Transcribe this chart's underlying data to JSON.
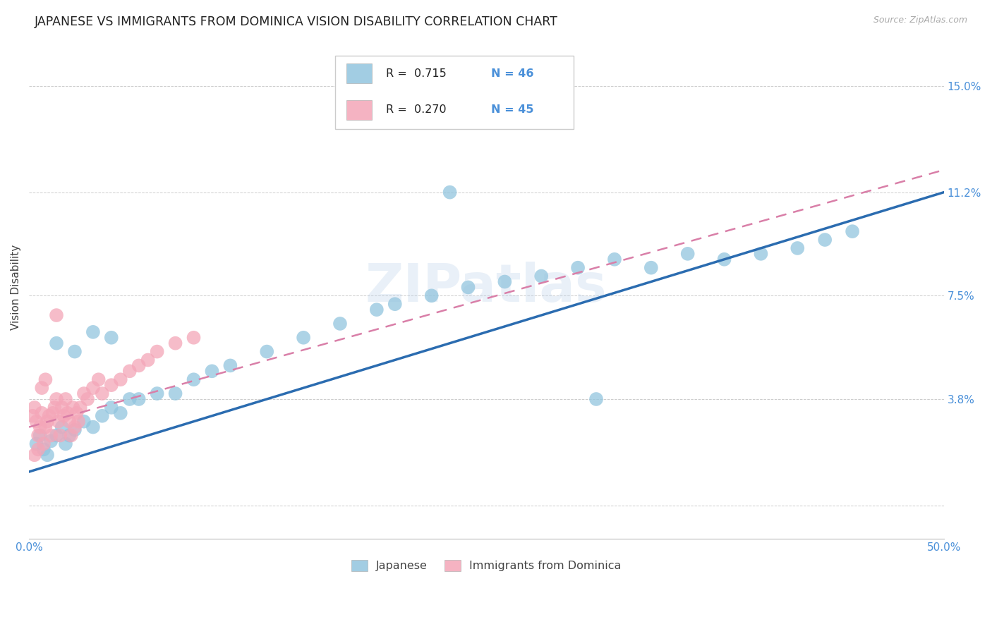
{
  "title": "JAPANESE VS IMMIGRANTS FROM DOMINICA VISION DISABILITY CORRELATION CHART",
  "source": "Source: ZipAtlas.com",
  "ylabel": "Vision Disability",
  "xlim": [
    0.0,
    0.5
  ],
  "ylim": [
    -0.012,
    0.168
  ],
  "xticks": [
    0.0,
    0.1,
    0.2,
    0.3,
    0.4,
    0.5
  ],
  "xticklabels": [
    "0.0%",
    "",
    "",
    "",
    "",
    "50.0%"
  ],
  "ytick_positions": [
    0.0,
    0.038,
    0.075,
    0.112,
    0.15
  ],
  "yticklabels": [
    "",
    "3.8%",
    "7.5%",
    "11.2%",
    "15.0%"
  ],
  "watermark": "ZIPatlas",
  "legend_r_japanese": "R =  0.715",
  "legend_n_japanese": "N = 46",
  "legend_r_dominica": "R =  0.270",
  "legend_n_dominica": "N = 45",
  "japanese_color": "#92c5de",
  "dominica_color": "#f4a6b8",
  "japanese_line_color": "#2b6cb0",
  "dominica_line_color": "#d97fa8",
  "title_fontsize": 12.5,
  "axis_label_fontsize": 11,
  "tick_fontsize": 11,
  "background_color": "#ffffff",
  "jap_x": [
    0.004,
    0.006,
    0.008,
    0.01,
    0.012,
    0.015,
    0.018,
    0.02,
    0.022,
    0.025,
    0.03,
    0.035,
    0.04,
    0.045,
    0.05,
    0.055,
    0.06,
    0.07,
    0.08,
    0.09,
    0.1,
    0.11,
    0.13,
    0.15,
    0.17,
    0.19,
    0.2,
    0.22,
    0.24,
    0.26,
    0.28,
    0.3,
    0.32,
    0.34,
    0.36,
    0.38,
    0.4,
    0.42,
    0.435,
    0.45,
    0.015,
    0.025,
    0.035,
    0.045,
    0.31,
    0.23
  ],
  "jap_y": [
    0.022,
    0.025,
    0.02,
    0.018,
    0.023,
    0.025,
    0.028,
    0.022,
    0.025,
    0.027,
    0.03,
    0.028,
    0.032,
    0.035,
    0.033,
    0.038,
    0.038,
    0.04,
    0.04,
    0.045,
    0.048,
    0.05,
    0.055,
    0.06,
    0.065,
    0.07,
    0.072,
    0.075,
    0.078,
    0.08,
    0.082,
    0.085,
    0.088,
    0.085,
    0.09,
    0.088,
    0.09,
    0.092,
    0.095,
    0.098,
    0.058,
    0.055,
    0.062,
    0.06,
    0.038,
    0.112
  ],
  "dom_x": [
    0.002,
    0.003,
    0.004,
    0.005,
    0.006,
    0.007,
    0.008,
    0.009,
    0.01,
    0.011,
    0.012,
    0.013,
    0.014,
    0.015,
    0.016,
    0.017,
    0.018,
    0.019,
    0.02,
    0.021,
    0.022,
    0.023,
    0.024,
    0.025,
    0.026,
    0.027,
    0.028,
    0.03,
    0.032,
    0.035,
    0.038,
    0.04,
    0.045,
    0.05,
    0.055,
    0.06,
    0.065,
    0.07,
    0.08,
    0.09,
    0.003,
    0.005,
    0.007,
    0.009,
    0.015
  ],
  "dom_y": [
    0.032,
    0.035,
    0.03,
    0.025,
    0.028,
    0.033,
    0.022,
    0.028,
    0.03,
    0.032,
    0.025,
    0.033,
    0.035,
    0.038,
    0.03,
    0.025,
    0.035,
    0.032,
    0.038,
    0.033,
    0.03,
    0.025,
    0.035,
    0.028,
    0.033,
    0.03,
    0.035,
    0.04,
    0.038,
    0.042,
    0.045,
    0.04,
    0.043,
    0.045,
    0.048,
    0.05,
    0.052,
    0.055,
    0.058,
    0.06,
    0.018,
    0.02,
    0.042,
    0.045,
    0.068
  ],
  "jap_line_x0": 0.0,
  "jap_line_y0": 0.012,
  "jap_line_x1": 0.5,
  "jap_line_y1": 0.112,
  "dom_line_x0": 0.0,
  "dom_line_y0": 0.028,
  "dom_line_x1": 0.5,
  "dom_line_y1": 0.12
}
